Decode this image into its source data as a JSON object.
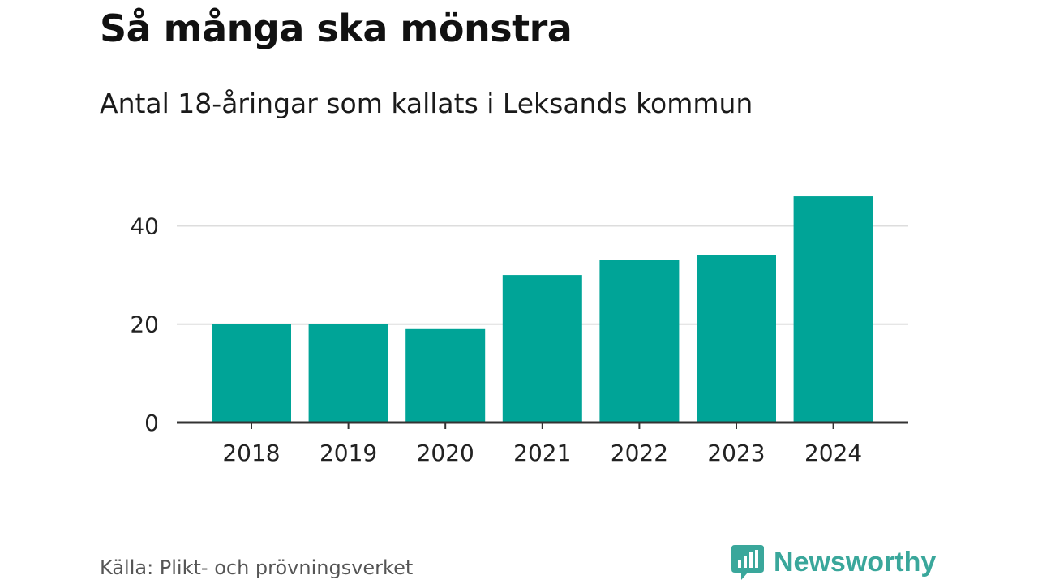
{
  "title": "Så många ska mönstra",
  "subtitle": "Antal 18-åringar som kallats i Leksands kommun",
  "source": "Källa: Plikt- och prövningsverket",
  "brand": "Newsworthy",
  "colors": {
    "bar": "#00a497",
    "grid": "#dddddd",
    "axis": "#333333",
    "brand": "#3aa79b"
  },
  "chart_data": {
    "type": "bar",
    "categories": [
      "2018",
      "2019",
      "2020",
      "2021",
      "2022",
      "2023",
      "2024"
    ],
    "values": [
      20,
      20,
      19,
      30,
      33,
      34,
      46
    ],
    "ylim": [
      0,
      47
    ],
    "yticks": [
      0,
      20,
      40
    ],
    "grid": true
  }
}
